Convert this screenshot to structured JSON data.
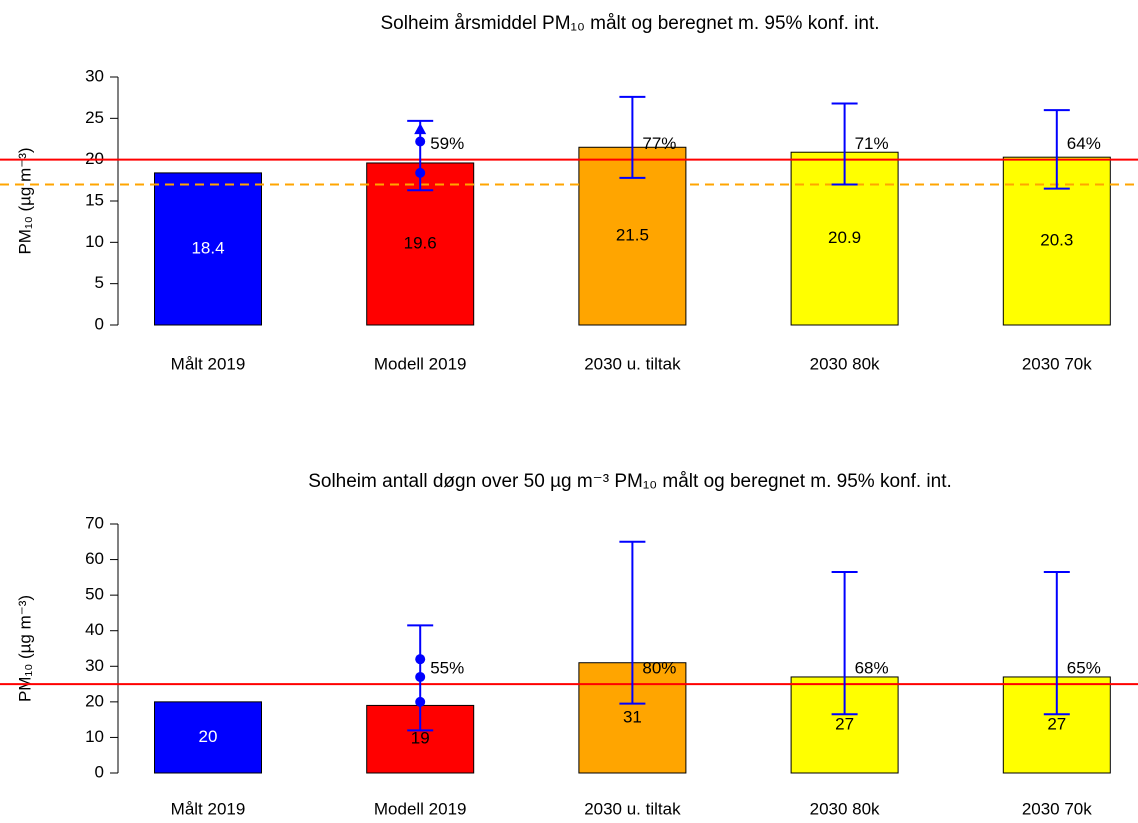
{
  "chart_data": [
    {
      "type": "bar",
      "title": "Solheim årsmiddel PM₁₀ målt og beregnet m. 95% konf. int.",
      "ylabel": "PM₁₀ (µg m⁻³)",
      "categories": [
        "Målt 2019",
        "Modell 2019",
        "2030 u. tiltak",
        "2030 80k",
        "2030 70k"
      ],
      "values": [
        18.4,
        19.6,
        21.5,
        20.9,
        20.3
      ],
      "colors": [
        "#0000ff",
        "#ff0000",
        "#ffa500",
        "#ffff00",
        "#ffff00"
      ],
      "label_colors": [
        "#ffffff",
        "#000000",
        "#000000",
        "#000000",
        "#000000"
      ],
      "ci_low": [
        null,
        16.3,
        17.8,
        17.0,
        16.5
      ],
      "ci_high": [
        null,
        24.7,
        27.6,
        26.8,
        26.0
      ],
      "prob_labels": [
        null,
        "59%",
        "77%",
        "71%",
        "64%"
      ],
      "points": {
        "category": 1,
        "color": "#0000ff",
        "values": [
          18.4,
          22.2,
          23.7
        ],
        "shapes": [
          "circle",
          "circle",
          "triangle"
        ]
      },
      "reference_lines": [
        {
          "value": 20,
          "color": "#ff0000",
          "dashed": false
        },
        {
          "value": 17,
          "color": "#ffa500",
          "dashed": true
        }
      ],
      "ylim": [
        0,
        30
      ],
      "yticks": [
        0,
        5,
        10,
        15,
        20,
        25,
        30
      ]
    },
    {
      "type": "bar",
      "title": "Solheim antall døgn over 50 µg m⁻³  PM₁₀ målt og beregnet m. 95% konf. int.",
      "ylabel": "PM₁₀ (µg m⁻³)",
      "categories": [
        "Målt 2019",
        "Modell 2019",
        "2030 u. tiltak",
        "2030 80k",
        "2030 70k"
      ],
      "values": [
        20,
        19,
        31,
        27,
        27
      ],
      "colors": [
        "#0000ff",
        "#ff0000",
        "#ffa500",
        "#ffff00",
        "#ffff00"
      ],
      "label_colors": [
        "#ffffff",
        "#000000",
        "#000000",
        "#000000",
        "#000000"
      ],
      "ci_low": [
        null,
        12,
        19.5,
        16.5,
        16.5
      ],
      "ci_high": [
        null,
        41.5,
        65,
        56.5,
        56.5
      ],
      "prob_labels": [
        null,
        "55%",
        "80%",
        "68%",
        "65%"
      ],
      "points": {
        "category": 1,
        "color": "#0000ff",
        "values": [
          20,
          27,
          32
        ],
        "shapes": [
          "circle",
          "circle",
          "circle"
        ]
      },
      "reference_lines": [
        {
          "value": 25,
          "color": "#ff0000",
          "dashed": false
        }
      ],
      "ylim": [
        0,
        70
      ],
      "yticks": [
        0,
        10,
        20,
        30,
        40,
        50,
        60,
        70
      ]
    }
  ]
}
